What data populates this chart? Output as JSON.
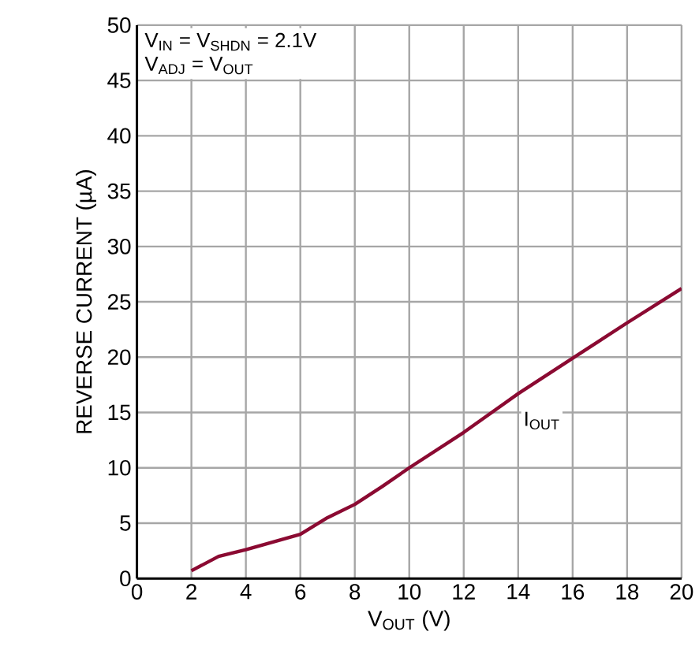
{
  "chart_data": {
    "type": "line",
    "xlabel": "V$_{OUT}$ (V)",
    "ylabel": "REVERSE CURRENT (µA)",
    "annotations": [
      "V$_{IN}$ = V$_{SHDN}$ = 2.1V",
      "V$_{ADJ}$ = V$_{OUT}$"
    ],
    "x": [
      2,
      3,
      4,
      5,
      6,
      7,
      8,
      9,
      10,
      12,
      14,
      16,
      18,
      20
    ],
    "series": [
      {
        "name": "I$_{OUT}$",
        "color": "#8b0a32",
        "values": [
          0.7,
          2.0,
          2.6,
          3.3,
          4.0,
          5.5,
          6.7,
          8.3,
          10.0,
          13.2,
          16.7,
          19.9,
          23.1,
          26.2
        ]
      }
    ],
    "xlim": [
      0,
      20
    ],
    "ylim": [
      0,
      50
    ],
    "xticks": [
      0,
      2,
      4,
      6,
      8,
      10,
      12,
      14,
      16,
      18,
      20
    ],
    "yticks": [
      0,
      5,
      10,
      15,
      20,
      25,
      30,
      35,
      40,
      45,
      50
    ],
    "grid": true,
    "legend": false,
    "marker": "none",
    "line_style": "solid"
  }
}
